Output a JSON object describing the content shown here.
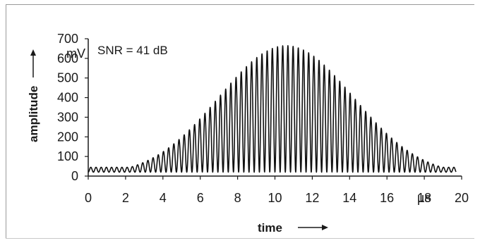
{
  "chart_data": {
    "type": "line",
    "title": "",
    "annotation": "SNR = 41 dB",
    "xlabel": "time",
    "ylabel": "amplitude",
    "x_unit": "µs",
    "y_unit": "mV",
    "xlim": [
      0,
      20
    ],
    "ylim": [
      0,
      700
    ],
    "x_ticks": [
      "0",
      "2",
      "4",
      "6",
      "8",
      "10",
      "12",
      "14",
      "16",
      "18",
      "20"
    ],
    "y_ticks": [
      "0",
      "100",
      "200",
      "300",
      "400",
      "500",
      "600",
      "700"
    ],
    "grid": false,
    "series": [
      {
        "waveform": "gaussian-modulated oscillation",
        "baseline": 20,
        "center_x": 10.6,
        "sigma": 3.6,
        "peak_amplitude": 665,
        "oscillation_frequency": 3.6,
        "min_envelope": 45,
        "x_start": 0,
        "x_end": 19.7
      }
    ]
  }
}
